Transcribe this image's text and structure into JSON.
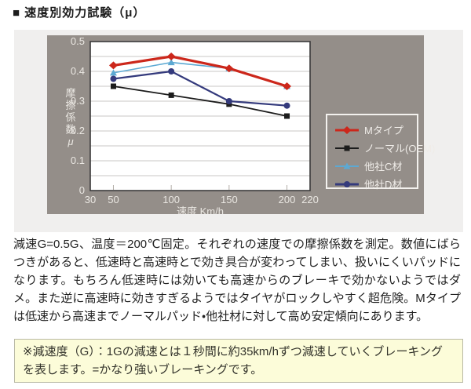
{
  "page": {
    "title": "■ 速度別効力試験（μ）"
  },
  "description": {
    "paragraph": "減速G=0.5G、温度＝200℃固定。それぞれの速度での摩擦係数を測定。数値にばらつきがあると、低速時と高速時とで効き具合が変わってしまい、扱いにくいパッドになります。もちろん低速時には効いても高速からのブレーキで効かないようではダメ。また逆に高速時に効きすぎるようではタイヤがロックしやすく超危険。Mタイプは低速から高速までノーマルパッド・他社材に対して高め安定傾向にあります。"
  },
  "note": {
    "text": "※減速度（G）：1Gの減速とは１秒間に約35km/hずつ減速していくブレーキングを表します。=かなり強いブレーキングです。",
    "background": "#fcfcd9",
    "border": "#b9b9a5"
  },
  "chart_data": {
    "type": "line",
    "x": [
      50,
      100,
      150,
      200
    ],
    "series": [
      {
        "name": "Mタイプ",
        "marker": "diamond",
        "color": "#cc271b",
        "line_width": 3.2,
        "values": [
          0.42,
          0.45,
          0.41,
          0.35
        ]
      },
      {
        "name": "ノーマル(OEM)",
        "marker": "square",
        "color": "#1c1c1c",
        "line_width": 1.8,
        "values": [
          0.35,
          0.32,
          0.29,
          0.25
        ]
      },
      {
        "name": "他社C材",
        "marker": "triangle",
        "color": "#5ca9d3",
        "line_width": 1.6,
        "values": [
          0.395,
          0.43,
          0.41,
          0.35
        ]
      },
      {
        "name": "他社D材",
        "marker": "circle",
        "color": "#343a7c",
        "line_width": 2.2,
        "values": [
          0.375,
          0.4,
          0.3,
          0.285
        ]
      }
    ],
    "draw_order": [
      1,
      2,
      3,
      0
    ],
    "xlabel": "速度 Km/h",
    "ylabel": "摩擦係数μ",
    "xlim": [
      30,
      220
    ],
    "ylim": [
      0,
      0.5
    ],
    "xticks": [
      30,
      50,
      100,
      150,
      200,
      220
    ],
    "yticks": [
      0,
      0.1,
      0.2,
      0.3,
      0.4,
      0.5
    ],
    "minor_grid_step": 0.05,
    "grid": true,
    "legend_position": "right-bottom",
    "colors": {
      "panel_bg": "#f0efee",
      "chart_bg": "#948e89",
      "plot_bg": "#ffffff",
      "grid": "#c9c7c4",
      "axis": "#3a3a3a",
      "tick": "#b3aea8",
      "label_text": "#eae7e2"
    }
  }
}
